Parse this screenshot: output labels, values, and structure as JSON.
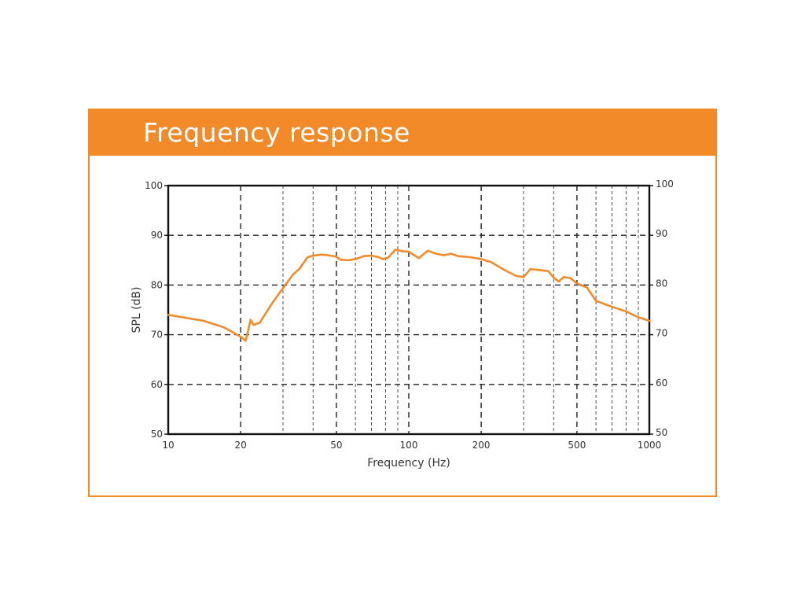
{
  "colors": {
    "accent": "#f28a2a",
    "series": "#f28a2a",
    "grid": "#222222",
    "text": "#333333"
  },
  "panel": {
    "title": "Frequency response"
  },
  "chart_data": {
    "type": "line",
    "title": "Frequency response",
    "xlabel": "Frequency (Hz)",
    "ylabel": "SPL (dB)",
    "xscale": "log",
    "xlim": [
      10,
      1000
    ],
    "ylim": [
      50,
      100
    ],
    "x_tick_labels": [
      "10",
      "20",
      "50",
      "100",
      "200",
      "500",
      "1000"
    ],
    "x_ticks": [
      10,
      20,
      50,
      100,
      200,
      500,
      1000
    ],
    "x_minor_gridlines": [
      30,
      40,
      60,
      70,
      80,
      90,
      300,
      400,
      600,
      700,
      800,
      900
    ],
    "y_ticks": [
      50,
      60,
      70,
      80,
      90,
      100
    ],
    "y_tick_labels_left": [
      "50",
      "60",
      "70",
      "80",
      "90",
      "100"
    ],
    "y_tick_labels_right": [
      "50",
      "60",
      "70",
      "80",
      "90",
      "100"
    ],
    "grid": true,
    "series": [
      {
        "x": [
          10,
          14,
          17,
          20,
          21,
          22,
          22.6,
          24,
          27,
          30,
          33,
          35,
          38,
          40,
          43,
          46,
          50,
          52,
          56,
          60,
          65,
          70,
          75,
          78,
          82,
          88,
          94,
          100,
          110,
          120,
          130,
          140,
          150,
          160,
          180,
          200,
          220,
          250,
          280,
          300,
          320,
          350,
          380,
          400,
          420,
          440,
          470,
          500,
          550,
          600,
          700,
          800,
          900,
          1000
        ],
        "y": [
          74,
          72.8,
          71.5,
          69.6,
          68.8,
          73,
          72,
          72.4,
          76.3,
          79.4,
          82.1,
          83.2,
          85.6,
          85.9,
          86.1,
          86.0,
          85.7,
          85.1,
          85.0,
          85.2,
          85.8,
          85.9,
          85.6,
          85.2,
          85.5,
          87.1,
          86.8,
          86.7,
          85.4,
          86.9,
          86.3,
          86.0,
          86.3,
          85.8,
          85.6,
          85.2,
          84.6,
          83.0,
          81.8,
          81.6,
          83.2,
          83.0,
          82.8,
          81.5,
          80.7,
          81.6,
          81.4,
          80.3,
          79.5,
          76.8,
          75.6,
          74.7,
          73.5,
          72.8
        ]
      }
    ]
  }
}
